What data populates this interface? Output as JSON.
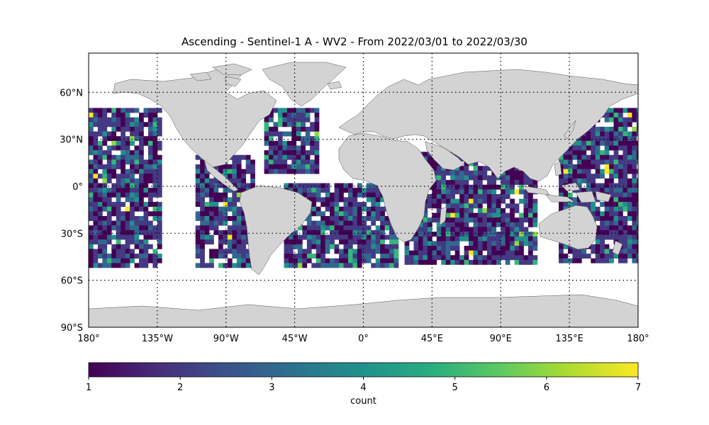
{
  "title": "Ascending - Sentinel-1 A - WV2 - From 2022/03/01 to 2022/03/30",
  "map": {
    "lat_ticks": [
      "60°N",
      "30°N",
      "0°",
      "30°S",
      "60°S",
      "90°S"
    ],
    "lon_ticks": [
      "180°",
      "135°W",
      "90°W",
      "45°W",
      "0°",
      "45°E",
      "90°E",
      "135°E",
      "180°"
    ],
    "land_color": "#d3d3d3",
    "ocean_color": "#ffffff",
    "gridlines": "dotted"
  },
  "colorbar": {
    "label": "count",
    "ticks": [
      "1",
      "2",
      "3",
      "4",
      "5",
      "6",
      "7"
    ],
    "min": 1,
    "max": 7,
    "colormap": "viridis"
  },
  "chart_data": {
    "type": "heatmap",
    "title": "Ascending - Sentinel-1 A - WV2 - From 2022/03/01 to 2022/03/30",
    "x_range": [
      -180,
      180
    ],
    "y_range": [
      -90,
      90
    ],
    "colorbar_label": "count",
    "value_range": [
      1,
      7
    ],
    "coverage": [
      {
        "region": "North/Central Pacific",
        "lon": [
          -180,
          -132
        ],
        "lat": [
          -50,
          50
        ],
        "dominant_count": 2
      },
      {
        "region": "East Pacific swaths",
        "lon": [
          -110,
          -72
        ],
        "lat": [
          -50,
          20
        ],
        "dominant_count": 2
      },
      {
        "region": "North Atlantic swaths",
        "lon": [
          -65,
          -30
        ],
        "lat": [
          10,
          50
        ],
        "dominant_count": 2
      },
      {
        "region": "South Atlantic",
        "lon": [
          -52,
          22
        ],
        "lat": [
          -50,
          2
        ],
        "dominant_count": 2
      },
      {
        "region": "Indian Ocean",
        "lon": [
          27,
          112
        ],
        "lat": [
          -50,
          22
        ],
        "dominant_count": 2
      },
      {
        "region": "West Pacific",
        "lon": [
          128,
          180
        ],
        "lat": [
          -48,
          50
        ],
        "dominant_count": 2
      }
    ]
  }
}
